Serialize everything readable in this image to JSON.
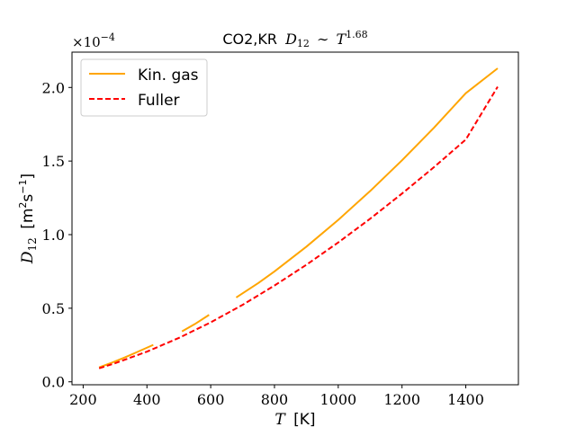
{
  "chart_data": {
    "type": "line",
    "title": {
      "prefix": "CO2,KR",
      "symbol": "D",
      "sub": "12",
      "relation": "∼",
      "var": "T",
      "exponent": "1.68"
    },
    "xlabel": {
      "symbol": "T",
      "unit": "[K]"
    },
    "ylabel": {
      "symbol": "D",
      "sub": "12",
      "unit_open": "[m",
      "unit_sq": "2",
      "unit_s": "s",
      "unit_exp": "−1",
      "unit_close": "]"
    },
    "y_multiplier": {
      "base": "×10",
      "exp": "−4"
    },
    "xlim": [
      165,
      1565
    ],
    "ylim": [
      -0.02,
      2.24
    ],
    "xticks": [
      200,
      400,
      600,
      800,
      1000,
      1200,
      1400
    ],
    "yticks": [
      0.0,
      0.5,
      1.0,
      1.5,
      2.0
    ],
    "yticklabels": [
      "0.0",
      "0.5",
      "1.0",
      "1.5",
      "2.0"
    ],
    "grid": false,
    "legend_position": "top-left",
    "series": [
      {
        "name": "Kin. gas",
        "color": "#ffa500",
        "style": "solid",
        "segments": [
          {
            "x": [
              250,
              290,
              330,
              370,
              420
            ],
            "y": [
              0.098,
              0.13,
              0.165,
              0.203,
              0.251
            ]
          },
          {
            "x": [
              510,
              550,
              595
            ],
            "y": [
              0.343,
              0.392,
              0.455
            ]
          },
          {
            "x": [
              680,
              750,
              800,
              900,
              1000,
              1100,
              1200,
              1300,
              1400,
              1500
            ],
            "y": [
              0.573,
              0.672,
              0.75,
              0.918,
              1.1,
              1.296,
              1.505,
              1.726,
              1.961,
              2.13
            ]
          }
        ]
      },
      {
        "name": "Fuller",
        "color": "#ff0000",
        "style": "dashed",
        "segments": [
          {
            "x": [
              250,
              300,
              400,
              500,
              600,
              700,
              800,
              900,
              1000,
              1100,
              1200,
              1300,
              1400,
              1500
            ],
            "y": [
              0.092,
              0.126,
              0.205,
              0.298,
              0.404,
              0.523,
              0.654,
              0.795,
              0.947,
              1.108,
              1.279,
              1.458,
              1.646,
              2.005
            ]
          }
        ]
      }
    ]
  }
}
